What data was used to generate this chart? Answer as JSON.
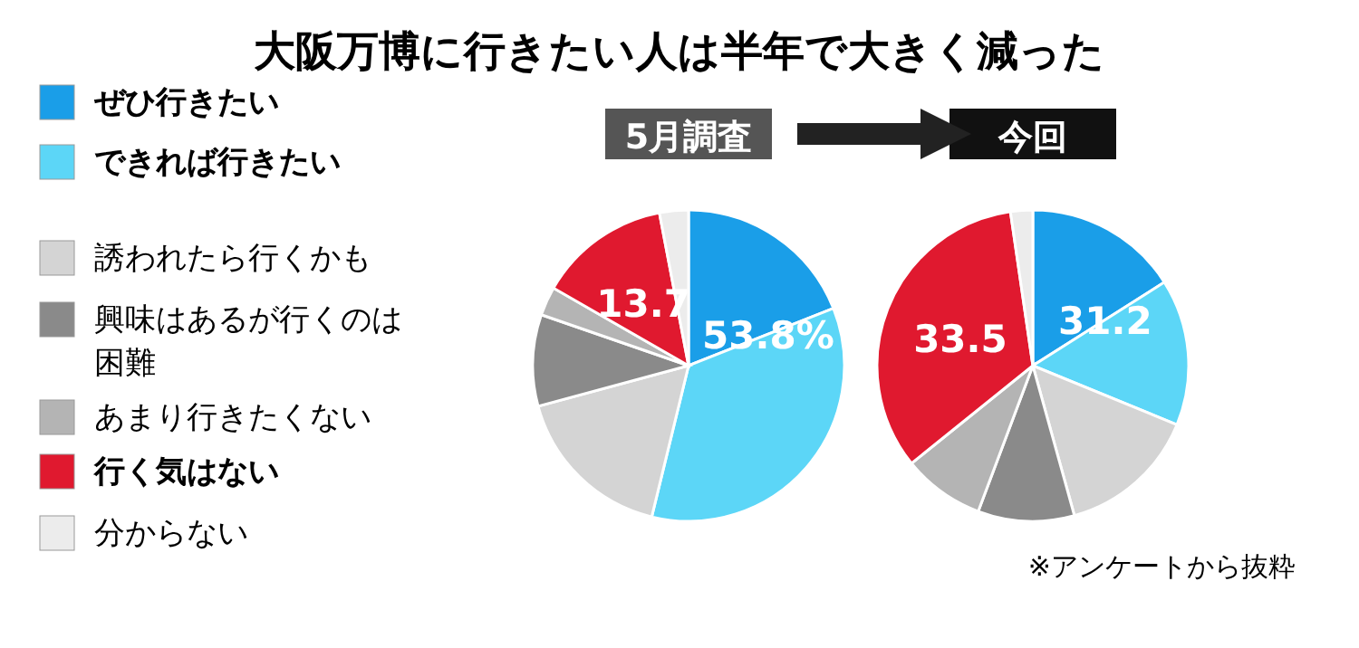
{
  "chart_data": [
    {
      "type": "pie",
      "title": "大阪万博に行きたい人は半年で大きく減った",
      "subtitle": "5月調査",
      "legend": "left",
      "categories": [
        "ぜひ行きたい",
        "できれば行きたい",
        "誘われたら行くかも",
        "興味はあるが行くのは困難",
        "あまり行きたくない",
        "行く気はない",
        "分からない"
      ],
      "values": [
        19,
        34.8,
        17,
        9.5,
        3,
        13.7,
        3
      ],
      "colors": [
        "#1a9ee8",
        "#5cd6f7",
        "#d4d4d4",
        "#8a8a8a",
        "#b4b4b4",
        "#e0192f",
        "#ececec"
      ],
      "value_labels": [
        null,
        null,
        null,
        null,
        null,
        "13.7",
        null
      ],
      "annotations": [
        "53.8%"
      ]
    },
    {
      "type": "pie",
      "subtitle": "今回",
      "categories": [
        null,
        null,
        null,
        null,
        null,
        null,
        null
      ],
      "values": [
        16,
        15.2,
        14.5,
        10,
        8.5,
        33.5,
        2.3
      ],
      "colors": [
        "#1a9ee8",
        "#5cd6f7",
        "#d4d4d4",
        "#8a8a8a",
        "#b4b4b4",
        "#e0192f",
        "#ececec"
      ],
      "value_labels": [
        null,
        null,
        null,
        null,
        null,
        "33.5",
        null
      ],
      "annotations": [
        "31.2",
        "※アンケートから抜粋"
      ]
    }
  ]
}
